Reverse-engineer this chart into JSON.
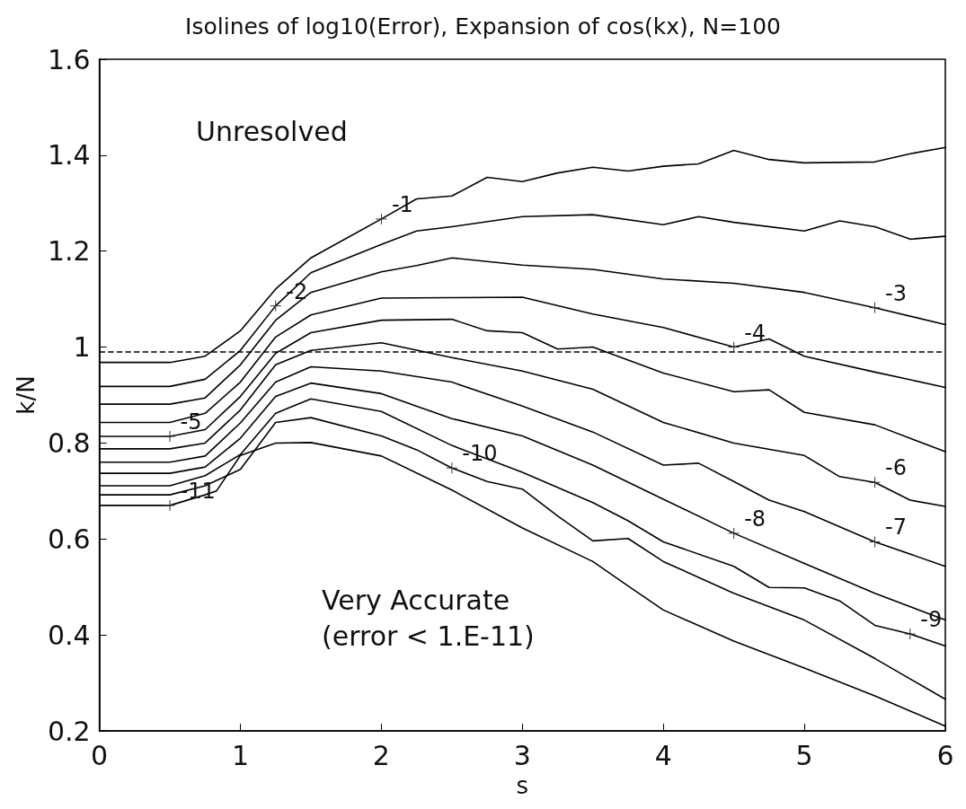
{
  "chart_data": {
    "type": "line",
    "title": "Isolines of log10(Error), Expansion of cos(kx), N=100",
    "xlabel": "s",
    "ylabel": "k/N",
    "xlim": [
      0,
      6
    ],
    "xticks": [
      0,
      1,
      2,
      3,
      4,
      5,
      6
    ],
    "ylim": [
      0.2,
      1.6
    ],
    "yticks": [
      0.2,
      0.4,
      0.6,
      0.8,
      1,
      1.2,
      1.4,
      1.6
    ],
    "grid": false,
    "marker": "none",
    "line_style": "solid",
    "series": [
      {
        "color": "#000000",
        "x": [
          0,
          0.5,
          0.75,
          1,
          1.25,
          1.5,
          2,
          2.25,
          2.5,
          2.75,
          3,
          3.25,
          3.5,
          3.75,
          4,
          4.25,
          4.5,
          4.75,
          5,
          5.5,
          5.75,
          6
        ],
        "values": [
          0.968,
          0.968,
          0.981,
          1.034,
          1.121,
          1.186,
          1.267,
          1.309,
          1.315,
          1.354,
          1.345,
          1.363,
          1.375,
          1.367,
          1.377,
          1.382,
          1.41,
          1.391,
          1.384,
          1.386,
          1.403,
          1.416
        ]
      },
      {
        "color": "#000000",
        "x": [
          0,
          0.5,
          0.75,
          1,
          1.25,
          1.5,
          2,
          2.25,
          2.5,
          3,
          3.5,
          4,
          4.25,
          4.5,
          5,
          5.25,
          5.5,
          5.75,
          6
        ],
        "values": [
          0.918,
          0.918,
          0.933,
          0.993,
          1.086,
          1.155,
          1.214,
          1.242,
          1.251,
          1.272,
          1.276,
          1.255,
          1.272,
          1.26,
          1.242,
          1.263,
          1.251,
          1.225,
          1.231
        ]
      },
      {
        "color": "#000000",
        "x": [
          0,
          0.5,
          0.75,
          1,
          1.25,
          1.5,
          2,
          2.25,
          2.5,
          3,
          3.5,
          4,
          4.5,
          5,
          5.5,
          6
        ],
        "values": [
          0.881,
          0.881,
          0.894,
          0.963,
          1.056,
          1.114,
          1.157,
          1.17,
          1.186,
          1.171,
          1.162,
          1.142,
          1.133,
          1.114,
          1.082,
          1.047
        ]
      },
      {
        "color": "#000000",
        "x": [
          0,
          0.5,
          0.75,
          1,
          1.25,
          1.5,
          2,
          2.5,
          3,
          3.5,
          4,
          4.5,
          4.75,
          5,
          5.5,
          6
        ],
        "values": [
          0.843,
          0.843,
          0.862,
          0.927,
          1.021,
          1.067,
          1.102,
          1.103,
          1.104,
          1.069,
          1.041,
          1.0,
          1.017,
          0.981,
          0.948,
          0.916
        ]
      },
      {
        "color": "#000000",
        "x": [
          0,
          0.5,
          0.75,
          1,
          1.25,
          1.5,
          2,
          2.5,
          2.75,
          3,
          3.25,
          3.5,
          4,
          4.5,
          4.75,
          5,
          5.5,
          6
        ],
        "values": [
          0.814,
          0.814,
          0.828,
          0.897,
          0.987,
          1.03,
          1.056,
          1.058,
          1.034,
          1.03,
          0.996,
          1.0,
          0.946,
          0.907,
          0.911,
          0.864,
          0.838,
          0.782
        ]
      },
      {
        "color": "#000000",
        "x": [
          0,
          0.5,
          0.75,
          1,
          1.25,
          1.5,
          2,
          2.5,
          3,
          3.5,
          4,
          4.5,
          5,
          5.25,
          5.5,
          5.75,
          6
        ],
        "values": [
          0.788,
          0.788,
          0.8,
          0.869,
          0.963,
          0.993,
          1.009,
          0.978,
          0.95,
          0.912,
          0.843,
          0.8,
          0.774,
          0.73,
          0.718,
          0.681,
          0.668
        ]
      },
      {
        "color": "#000000",
        "x": [
          0,
          0.5,
          0.75,
          1,
          1.25,
          1.5,
          2,
          2.5,
          3,
          3.5,
          4,
          4.25,
          4.5,
          4.75,
          5,
          5.5,
          6
        ],
        "values": [
          0.76,
          0.76,
          0.773,
          0.842,
          0.927,
          0.959,
          0.95,
          0.927,
          0.877,
          0.823,
          0.754,
          0.758,
          0.72,
          0.681,
          0.657,
          0.594,
          0.543
        ]
      },
      {
        "color": "#000000",
        "x": [
          0,
          0.5,
          0.75,
          1,
          1.25,
          1.5,
          2,
          2.5,
          3,
          3.5,
          4,
          4.5,
          5,
          5.5,
          6
        ],
        "values": [
          0.737,
          0.737,
          0.75,
          0.81,
          0.897,
          0.925,
          0.903,
          0.851,
          0.815,
          0.754,
          0.683,
          0.612,
          0.549,
          0.487,
          0.431
        ]
      },
      {
        "color": "#000000",
        "x": [
          0,
          0.5,
          0.75,
          1,
          1.25,
          1.5,
          2,
          2.5,
          3,
          3.5,
          3.75,
          4,
          4.5,
          4.75,
          5,
          5.25,
          5.5,
          5.75,
          6
        ],
        "values": [
          0.711,
          0.711,
          0.732,
          0.776,
          0.862,
          0.892,
          0.866,
          0.795,
          0.739,
          0.676,
          0.638,
          0.594,
          0.543,
          0.499,
          0.498,
          0.471,
          0.42,
          0.402,
          0.377
        ]
      },
      {
        "color": "#000000",
        "x": [
          0,
          0.5,
          0.75,
          1,
          1.25,
          1.5,
          2,
          2.25,
          2.5,
          2.75,
          3,
          3.25,
          3.5,
          3.75,
          4,
          4.5,
          5,
          5.5,
          6
        ],
        "values": [
          0.692,
          0.692,
          0.711,
          0.745,
          0.843,
          0.853,
          0.815,
          0.786,
          0.748,
          0.72,
          0.704,
          0.648,
          0.596,
          0.601,
          0.553,
          0.487,
          0.431,
          0.351,
          0.266
        ]
      },
      {
        "color": "#000000",
        "x": [
          0,
          0.5,
          0.75,
          0.83,
          1,
          1.25,
          1.5,
          2,
          2.5,
          3,
          3.5,
          3.75,
          4,
          4.5,
          5,
          5.5,
          6
        ],
        "values": [
          0.67,
          0.67,
          0.692,
          0.7,
          0.774,
          0.8,
          0.801,
          0.773,
          0.702,
          0.623,
          0.553,
          0.502,
          0.452,
          0.387,
          0.331,
          0.273,
          0.21
        ]
      }
    ],
    "ref_lines": [
      {
        "axis": "y",
        "value": 0.99,
        "color": "#000000",
        "line_style": "dashed"
      }
    ],
    "annotations": [
      {
        "text": "-1",
        "x": 2,
        "y": 1.267
      },
      {
        "text": "-2",
        "x": 1.25,
        "y": 1.086
      },
      {
        "text": "-3",
        "x": 5.5,
        "y": 1.082
      },
      {
        "text": "-4",
        "x": 4.5,
        "y": 1.0
      },
      {
        "text": "-5",
        "x": 0.5,
        "y": 0.814
      },
      {
        "text": "-6",
        "x": 5.5,
        "y": 0.718
      },
      {
        "text": "-7",
        "x": 5.5,
        "y": 0.594
      },
      {
        "text": "-8",
        "x": 4.5,
        "y": 0.612
      },
      {
        "text": "-9",
        "x": 5.75,
        "y": 0.402
      },
      {
        "text": "-10",
        "x": 2.5,
        "y": 0.748
      },
      {
        "text": "-11",
        "x": 0.5,
        "y": 0.67
      },
      "Unresolved",
      "Very Accurate\n(error < 1.E-11)"
    ]
  }
}
